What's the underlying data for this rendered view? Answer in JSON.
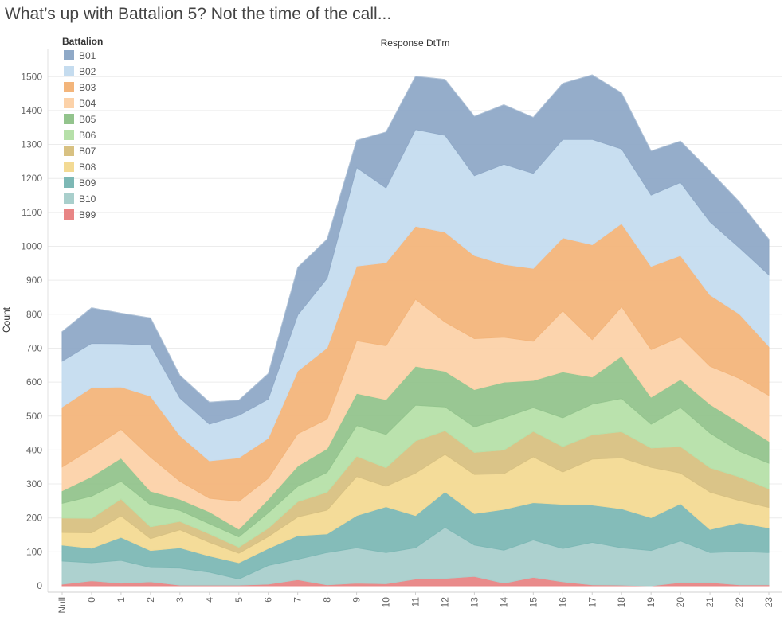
{
  "title": "What’s up with Battalion 5? Not the time of the call...",
  "chart_data": {
    "type": "area",
    "stacked": true,
    "header": "Response DtTm",
    "xlabel": "",
    "ylabel": "Count",
    "ylim": [
      0,
      1550
    ],
    "yticks": [
      0,
      100,
      200,
      300,
      400,
      500,
      600,
      700,
      800,
      900,
      1000,
      1100,
      1200,
      1300,
      1400,
      1500
    ],
    "grid": true,
    "legend": {
      "title": "Battalion",
      "position": "top-left"
    },
    "categories": [
      "Null",
      "0",
      "1",
      "2",
      "3",
      "4",
      "5",
      "6",
      "7",
      "8",
      "9",
      "10",
      "11",
      "12",
      "13",
      "14",
      "15",
      "16",
      "17",
      "18",
      "19",
      "20",
      "21",
      "22",
      "23"
    ],
    "series": [
      {
        "name": "B99",
        "color": "#E88585",
        "values": [
          5,
          15,
          8,
          12,
          2,
          2,
          2,
          5,
          18,
          3,
          8,
          6,
          20,
          22,
          28,
          8,
          25,
          12,
          3,
          2,
          0,
          10,
          10,
          3,
          3
        ]
      },
      {
        "name": "B10",
        "color": "#A9CFCC",
        "values": [
          68,
          53,
          67,
          42,
          50,
          38,
          18,
          55,
          60,
          95,
          104,
          92,
          92,
          150,
          92,
          97,
          110,
          98,
          125,
          110,
          104,
          122,
          88,
          98,
          95
        ]
      },
      {
        "name": "B09",
        "color": "#7DB8B5",
        "values": [
          47,
          43,
          68,
          50,
          60,
          48,
          48,
          50,
          70,
          55,
          95,
          135,
          95,
          105,
          93,
          120,
          110,
          130,
          110,
          115,
          97,
          110,
          68,
          85,
          73
        ]
      },
      {
        "name": "B08",
        "color": "#F3DA94",
        "values": [
          37,
          45,
          63,
          35,
          53,
          40,
          28,
          35,
          55,
          70,
          115,
          60,
          125,
          110,
          115,
          105,
          135,
          95,
          135,
          150,
          148,
          90,
          110,
          65,
          60
        ]
      },
      {
        "name": "B07",
        "color": "#D8C182",
        "values": [
          43,
          43,
          50,
          35,
          25,
          25,
          18,
          25,
          45,
          53,
          60,
          55,
          95,
          70,
          65,
          70,
          75,
          75,
          72,
          77,
          57,
          78,
          72,
          70,
          55
        ]
      },
      {
        "name": "B06",
        "color": "#B6E0A9",
        "values": [
          43,
          65,
          52,
          65,
          32,
          30,
          30,
          45,
          45,
          58,
          90,
          98,
          105,
          70,
          75,
          95,
          70,
          85,
          90,
          98,
          70,
          115,
          102,
          75,
          75
        ]
      },
      {
        "name": "B05",
        "color": "#93C48D",
        "values": [
          37,
          58,
          68,
          40,
          33,
          35,
          23,
          40,
          60,
          70,
          95,
          103,
          115,
          105,
          110,
          105,
          80,
          135,
          80,
          125,
          80,
          83,
          85,
          85,
          65
        ]
      },
      {
        "name": "B04",
        "color": "#FCD2A9",
        "values": [
          70,
          82,
          85,
          100,
          53,
          40,
          82,
          62,
          95,
          87,
          155,
          158,
          197,
          145,
          150,
          132,
          115,
          180,
          110,
          145,
          140,
          125,
          112,
          130,
          135
        ]
      },
      {
        "name": "B03",
        "color": "#F3B57B",
        "values": [
          177,
          180,
          125,
          180,
          135,
          110,
          128,
          118,
          185,
          210,
          220,
          245,
          215,
          265,
          245,
          215,
          215,
          215,
          280,
          245,
          245,
          240,
          210,
          190,
          145
        ]
      },
      {
        "name": "B02",
        "color": "#C5DCEF",
        "values": [
          135,
          130,
          127,
          150,
          110,
          108,
          125,
          115,
          165,
          205,
          290,
          220,
          285,
          285,
          235,
          295,
          280,
          290,
          310,
          220,
          210,
          215,
          215,
          195,
          210
        ]
      },
      {
        "name": "B01",
        "color": "#8FA9C7",
        "values": [
          87,
          105,
          90,
          80,
          67,
          65,
          45,
          75,
          140,
          115,
          80,
          165,
          157,
          165,
          175,
          175,
          165,
          165,
          190,
          165,
          130,
          122,
          150,
          135,
          105
        ]
      }
    ]
  }
}
